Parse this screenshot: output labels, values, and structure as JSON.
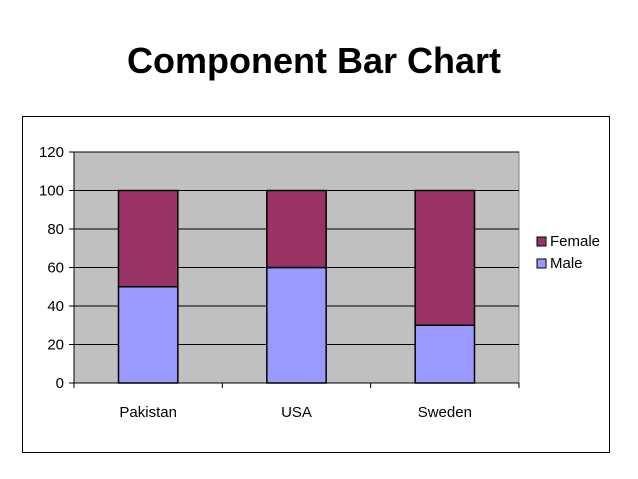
{
  "title": "Component Bar Chart",
  "chart_data": {
    "type": "bar",
    "stacked": true,
    "categories": [
      "Pakistan",
      "USA",
      "Sweden"
    ],
    "series": [
      {
        "name": "Male",
        "values": [
          50,
          60,
          30
        ],
        "color": "#9999ff"
      },
      {
        "name": "Female",
        "values": [
          50,
          40,
          70
        ],
        "color": "#993366"
      }
    ],
    "ylim": [
      0,
      120
    ],
    "yticks": [
      "0",
      "20",
      "40",
      "60",
      "80",
      "100",
      "120"
    ],
    "grid": true,
    "plot_background": "#c0c0c0",
    "legend_position": "right",
    "legend_order": [
      "Female",
      "Male"
    ]
  }
}
